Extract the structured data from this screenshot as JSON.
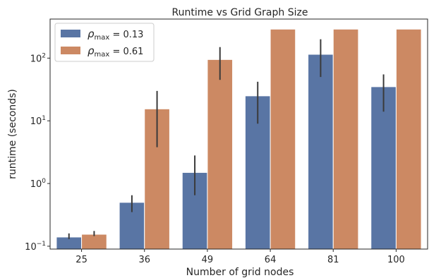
{
  "chart_data": {
    "type": "bar",
    "title": "Runtime vs Grid Graph Size",
    "xlabel": "Number of grid nodes",
    "ylabel": "runtime (seconds)",
    "yscale": "log",
    "ylim": [
      0.09,
      420
    ],
    "yticks": [
      {
        "value": 0.1,
        "base": "10",
        "exp": "−1"
      },
      {
        "value": 1,
        "base": "10",
        "exp": "0"
      },
      {
        "value": 10,
        "base": "10",
        "exp": "1"
      },
      {
        "value": 100,
        "base": "10",
        "exp": "2"
      }
    ],
    "categories": [
      "25",
      "36",
      "49",
      "64",
      "81",
      "100"
    ],
    "series": [
      {
        "name": "ρmax = 0.13",
        "name_main": "ρ",
        "name_sub": "max",
        "name_value": " = 0.13",
        "color": "#5975a4",
        "values": [
          0.14,
          0.5,
          1.5,
          25,
          115,
          35
        ],
        "err_low": [
          0.13,
          0.35,
          0.65,
          9,
          50,
          14
        ],
        "err_high": [
          0.16,
          0.65,
          2.8,
          42,
          200,
          55
        ]
      },
      {
        "name": "ρmax = 0.61",
        "name_main": "ρ",
        "name_sub": "max",
        "name_value": " = 0.61",
        "color": "#cc8963",
        "values": [
          0.155,
          15.5,
          95,
          290,
          290,
          290
        ],
        "err_low": [
          0.145,
          3.8,
          45,
          null,
          null,
          null
        ],
        "err_high": [
          0.175,
          30,
          150,
          null,
          null,
          null
        ]
      }
    ],
    "legend_position": "top-left",
    "grid": false
  }
}
